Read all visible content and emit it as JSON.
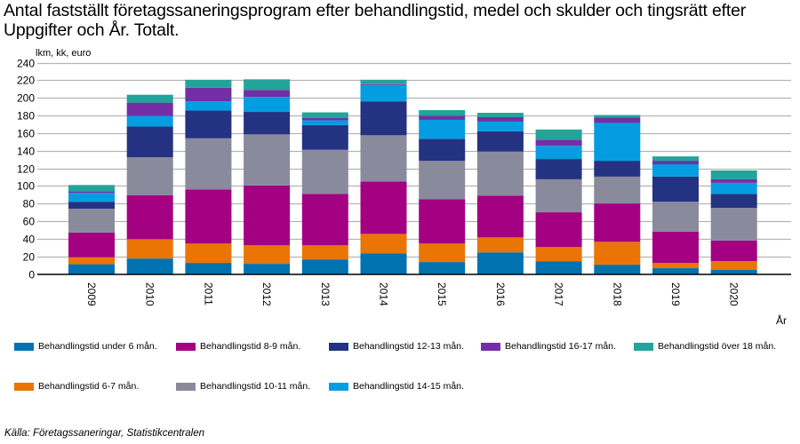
{
  "chart_data": {
    "type": "bar",
    "stacked": true,
    "title": "Antal fastställt företagssaneringsprogram efter behandlingstid, medel och skulder och tingsrätt efter Uppgifter och År. Totalt.",
    "ylabel": "lkm, kk, euro",
    "xlabel": "År",
    "ylim": [
      0,
      240
    ],
    "yticks": [
      0,
      20,
      40,
      60,
      80,
      100,
      120,
      140,
      160,
      180,
      200,
      220,
      240
    ],
    "grid": true,
    "legend_position": "bottom",
    "categories": [
      "2009",
      "2010",
      "2011",
      "2012",
      "2013",
      "2014",
      "2015",
      "2016",
      "2017",
      "2018",
      "2019",
      "2020"
    ],
    "series": [
      {
        "name": "Behandlingstid under 6 mån.",
        "color": "#0072b0",
        "values": [
          11,
          17.5,
          12.5,
          11.5,
          16.5,
          23.5,
          13.5,
          24.5,
          14.5,
          10.5,
          6.5,
          4.5
        ]
      },
      {
        "name": "Behandlingstid 6-7 mån.",
        "color": "#ea7404",
        "values": [
          8,
          22,
          22,
          21,
          16,
          22,
          21,
          17,
          16,
          26,
          6,
          10
        ]
      },
      {
        "name": "Behandlingstid 8-9 mån.",
        "color": "#a30082",
        "values": [
          28,
          50,
          61.5,
          68,
          58.5,
          59.5,
          50.5,
          47.5,
          39.5,
          43.5,
          35.5,
          23.5
        ]
      },
      {
        "name": "Behandlingstid 10-11 mån.",
        "color": "#898a9c",
        "values": [
          27,
          43,
          58,
          58,
          50,
          52.5,
          43.5,
          50,
          37.5,
          30.5,
          34,
          37
        ]
      },
      {
        "name": "Behandlingstid 12-13 mån.",
        "color": "#243282",
        "values": [
          8,
          35,
          31.5,
          25.5,
          28,
          38.5,
          25,
          23,
          23,
          18,
          28.5,
          16
        ]
      },
      {
        "name": "Behandlingstid 14-15 mån.",
        "color": "#049de1",
        "values": [
          10,
          12,
          10.5,
          17,
          5.5,
          18.5,
          21.5,
          11,
          15,
          43,
          14,
          12.5
        ]
      },
      {
        "name": "Behandlingstid 16-17 mån.",
        "color": "#732ea6",
        "values": [
          2,
          15,
          15.5,
          8,
          2.5,
          1,
          4.5,
          5,
          7,
          6,
          4,
          4
        ]
      },
      {
        "name": "Behandlingstid över 18 mån.",
        "color": "#22a49a",
        "values": [
          7,
          9,
          9,
          12,
          6.5,
          5,
          6.5,
          5,
          11.5,
          3,
          5,
          10
        ]
      }
    ]
  },
  "legend_order": [
    0,
    2,
    4,
    6,
    7,
    1,
    3,
    5
  ],
  "source": "Källa: Företagssaneringar, Statistikcentralen"
}
